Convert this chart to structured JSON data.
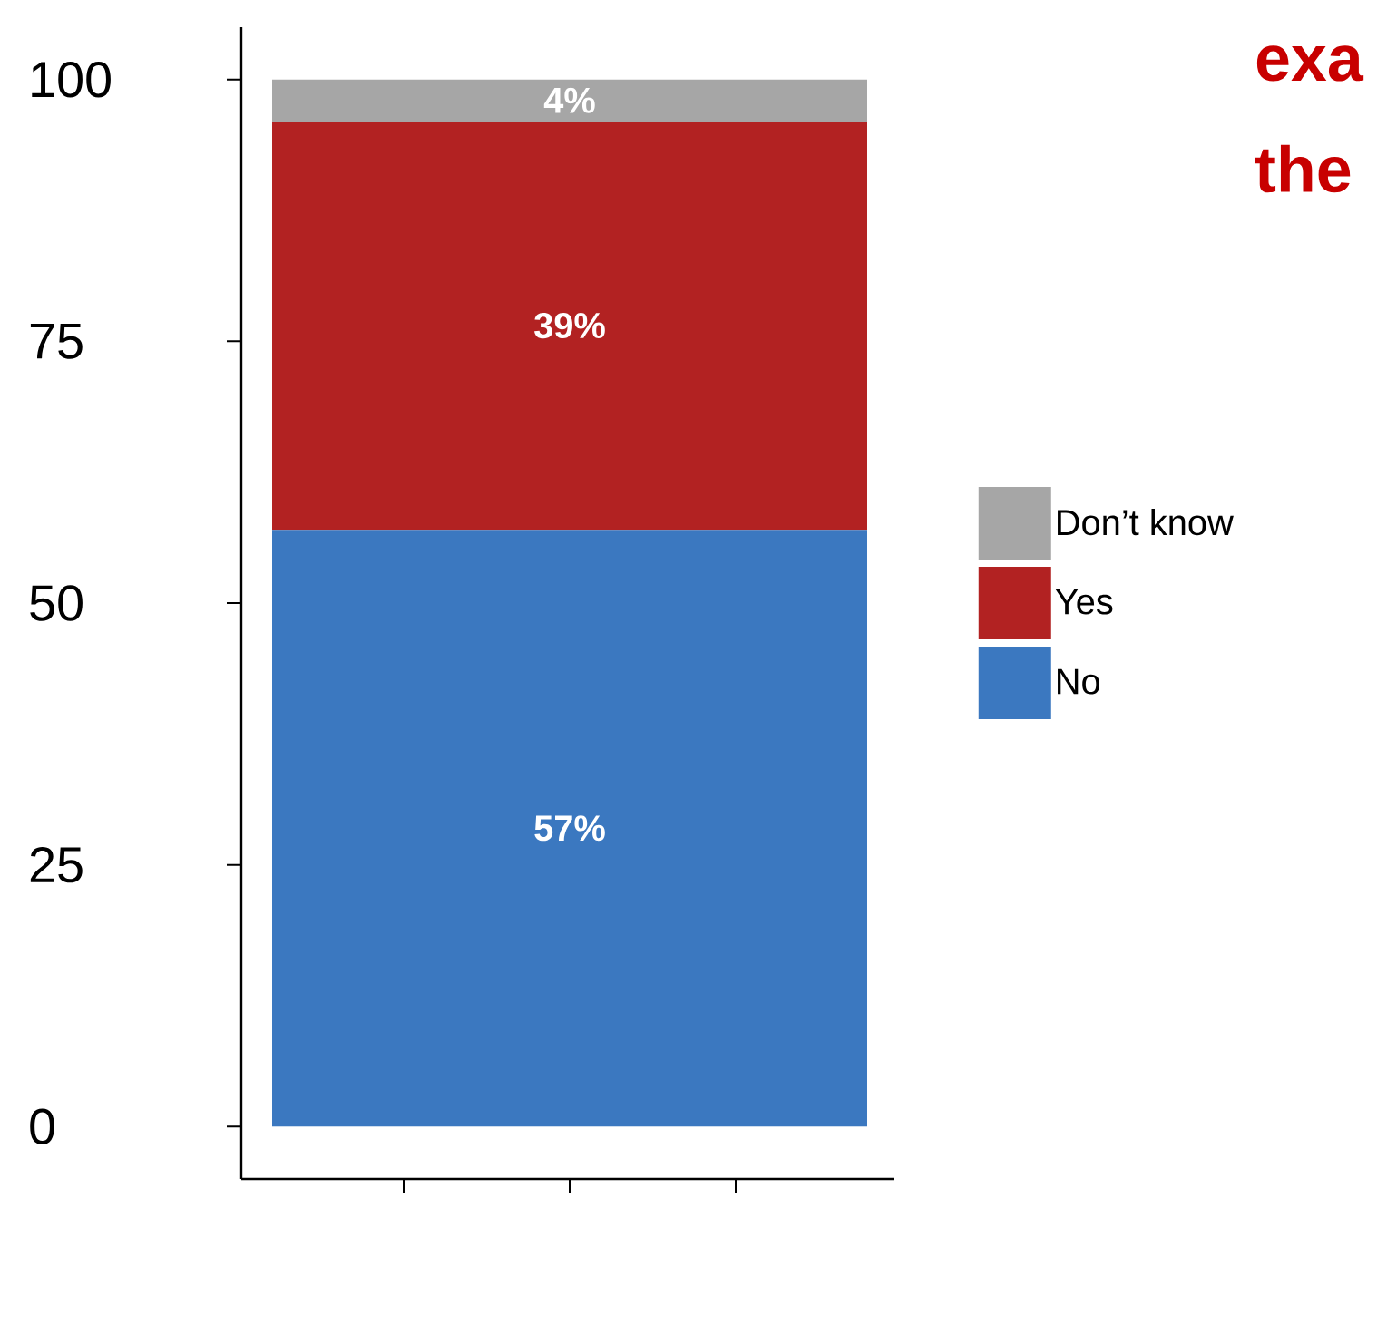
{
  "chart_data": {
    "type": "bar",
    "stacked": true,
    "categories": [
      null
    ],
    "series": [
      {
        "name": "No",
        "color": "#3b78c0",
        "values": [
          57
        ],
        "value_labels": [
          "57%"
        ]
      },
      {
        "name": "Yes",
        "color": "#b22222",
        "values": [
          39
        ],
        "value_labels": [
          "39%"
        ]
      },
      {
        "name": "Don’t know",
        "color": "#a6a6a6",
        "values": [
          4
        ],
        "value_labels": [
          "4%"
        ]
      }
    ],
    "ylim": [
      -5,
      105
    ],
    "yticks": [
      0,
      25,
      50,
      75,
      100
    ],
    "tick_labels": "y",
    "legend": "right",
    "grid": false,
    "annotations": [
      "exa",
      "the"
    ]
  }
}
